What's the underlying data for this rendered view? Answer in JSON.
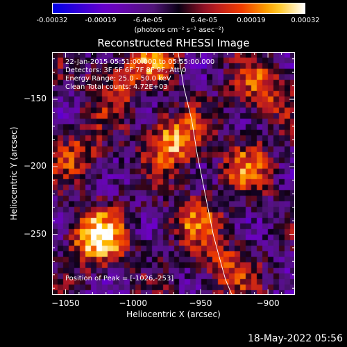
{
  "chart_data": {
    "type": "heatmap",
    "title": "Reconstructed RHESSI Image",
    "xlabel": "Heliocentric X (arcsec)",
    "ylabel": "Heliocentric Y (arcsec)",
    "xlim": [
      -1060,
      -880
    ],
    "ylim": [
      -295,
      -115
    ],
    "x_ticks": [
      -1050,
      -1000,
      -950,
      -900
    ],
    "x_tick_labels": [
      "−1050",
      "−1000",
      "−950",
      "−900"
    ],
    "y_ticks": [
      -150,
      -200,
      -250
    ],
    "y_tick_labels": [
      "−150",
      "−200",
      "−250"
    ],
    "colorbar": {
      "ticks": [
        "-0.00032",
        "-0.00019",
        "-6.4e-05",
        "6.4e-05",
        "0.00019",
        "0.00032"
      ],
      "unit": "(photons cm⁻² s⁻¹ asec⁻²)",
      "range": [
        -0.00032,
        0.00032
      ]
    },
    "info_lines": [
      "22-Jan-2015 05:51:00.000 to 05:55:00.000",
      "Detectors: 3F 5F 6F 7F 8F 9F, Att 0",
      "Energy Range: 25.0 - 50.0 keV",
      "Clean     Total counts: 4.72E+03"
    ],
    "peak_text": "Position of Peak = [-1026,-253]",
    "peak_position": [
      -1026,
      -253
    ],
    "bright_sources": [
      {
        "x": -1026,
        "y": -253,
        "strength": 1.0
      },
      {
        "x": -970,
        "y": -180,
        "strength": 0.85
      },
      {
        "x": -905,
        "y": -143,
        "strength": 0.6
      },
      {
        "x": -915,
        "y": -200,
        "strength": 0.55
      },
      {
        "x": -955,
        "y": -240,
        "strength": 0.5
      },
      {
        "x": -1040,
        "y": -190,
        "strength": 0.45
      },
      {
        "x": -1015,
        "y": -140,
        "strength": 0.45
      },
      {
        "x": -930,
        "y": -275,
        "strength": 0.5
      },
      {
        "x": -985,
        "y": -120,
        "strength": 0.6
      }
    ],
    "limb_curve": {
      "x": [
        -967,
        -963,
        -957,
        -953,
        -949,
        -945,
        -941,
        -937,
        -932,
        -927
      ],
      "y": [
        -115,
        -140,
        -165,
        -190,
        -210,
        -230,
        -250,
        -265,
        -283,
        -295
      ]
    }
  },
  "timestamp": "18-May-2022 05:56"
}
